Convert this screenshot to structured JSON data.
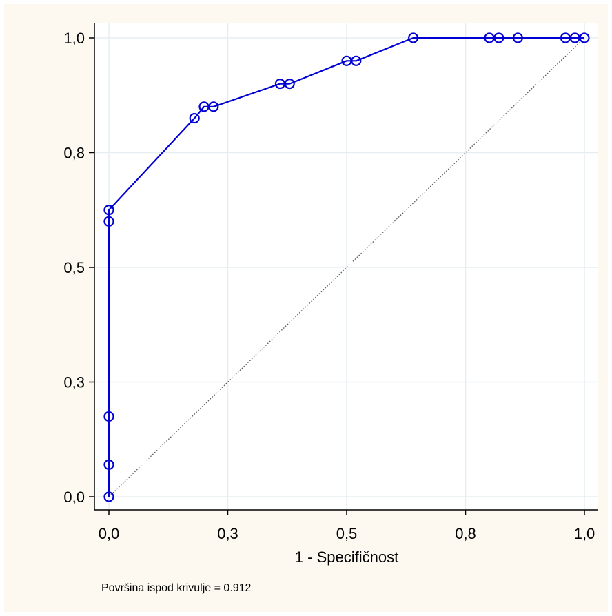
{
  "chart_data": {
    "type": "line",
    "title": "",
    "xlabel": "1 - Specifičnost",
    "ylabel": "",
    "xlim": [
      0,
      1
    ],
    "ylim": [
      0,
      1
    ],
    "x_ticks": [
      {
        "value": 0.0,
        "label": "0,0"
      },
      {
        "value": 0.25,
        "label": "0,3"
      },
      {
        "value": 0.5,
        "label": "0,5"
      },
      {
        "value": 0.75,
        "label": "0,8"
      },
      {
        "value": 1.0,
        "label": "1,0"
      }
    ],
    "y_ticks": [
      {
        "value": 0.0,
        "label": "0,0"
      },
      {
        "value": 0.25,
        "label": "0,3"
      },
      {
        "value": 0.5,
        "label": "0,5"
      },
      {
        "value": 0.75,
        "label": "0,8"
      },
      {
        "value": 1.0,
        "label": "1,0"
      }
    ],
    "grid": true,
    "series": [
      {
        "color": "#0000d4",
        "marker": "circle",
        "x": [
          0.0,
          0.0,
          0.0,
          0.0,
          0.0,
          0.18,
          0.2,
          0.22,
          0.36,
          0.38,
          0.5,
          0.52,
          0.64,
          0.8,
          0.82,
          0.86,
          0.96,
          0.98,
          1.0
        ],
        "y": [
          0.0,
          0.07,
          0.175,
          0.6,
          0.625,
          0.825,
          0.85,
          0.85,
          0.9,
          0.9,
          0.95,
          0.95,
          1.0,
          1.0,
          1.0,
          1.0,
          1.0,
          1.0,
          1.0
        ]
      }
    ],
    "reference_line": {
      "x": [
        0,
        1
      ],
      "y": [
        0,
        1
      ],
      "style": "dotted",
      "color": "#555555"
    },
    "annotation": "Površina ispod krivulje = 0.912"
  }
}
